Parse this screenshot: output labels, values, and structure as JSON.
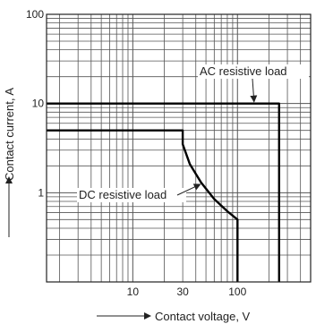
{
  "chart_data": {
    "type": "line",
    "xlabel": "Contact voltage, V",
    "ylabel": "Contact current, A",
    "x_scale": "log",
    "y_scale": "log",
    "xlim": [
      1.5,
      500
    ],
    "ylim": [
      0.1,
      100
    ],
    "x_tick_labels": [
      "10",
      "30",
      "100"
    ],
    "x_tick_values": [
      10,
      30,
      100
    ],
    "y_tick_labels": [
      "100",
      "10",
      "1"
    ],
    "y_tick_values": [
      100,
      10,
      1
    ],
    "grid": true,
    "series": [
      {
        "name": "AC resistive load",
        "x": [
          1.5,
          250,
          250
        ],
        "y": [
          10,
          10,
          0.1
        ]
      },
      {
        "name": "DC resistive load",
        "x": [
          1.5,
          30,
          30,
          35,
          45,
          60,
          80,
          100,
          100
        ],
        "y": [
          5,
          5,
          3.5,
          2.1,
          1.3,
          0.85,
          0.62,
          0.5,
          0.1
        ]
      }
    ],
    "annotations": [
      "AC resistive load",
      "DC resistive load"
    ],
    "colors": {
      "curve": "#000000",
      "grid": "#555555",
      "text": "#222222"
    }
  }
}
